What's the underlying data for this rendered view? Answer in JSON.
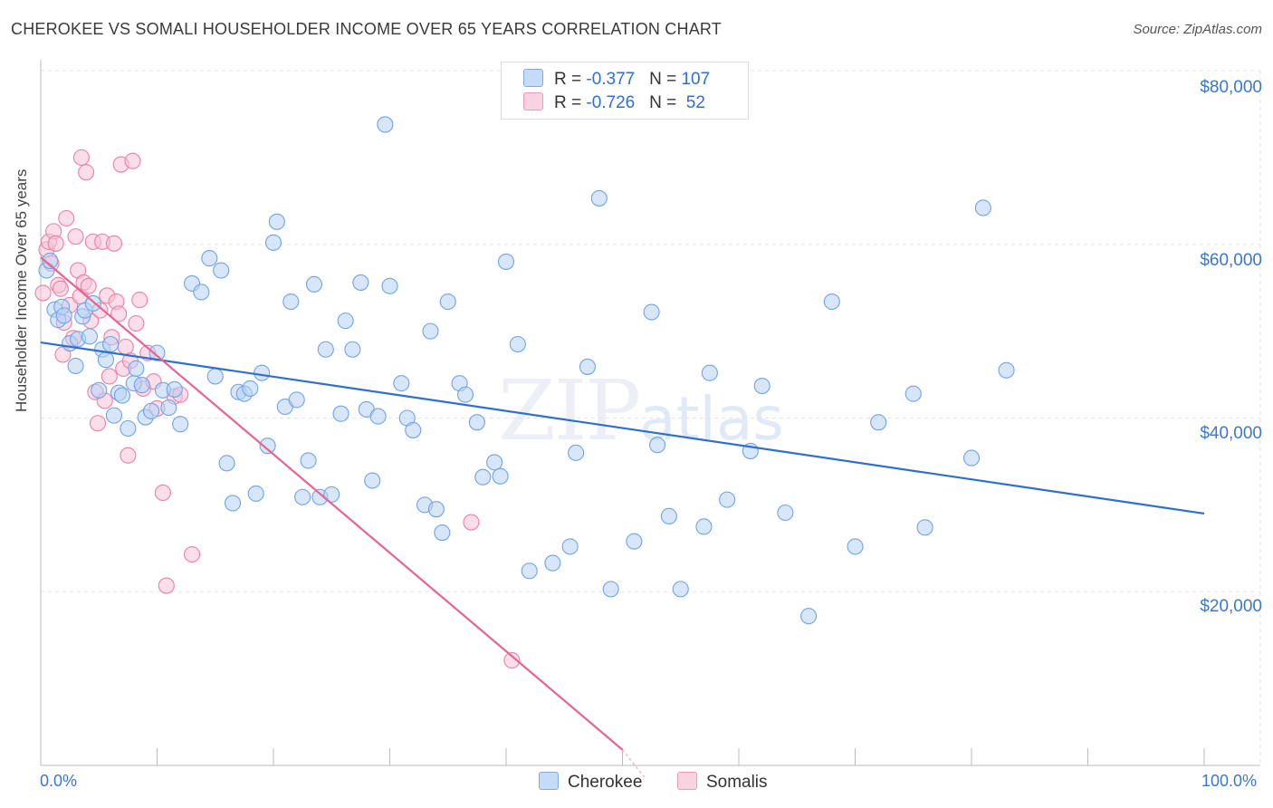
{
  "header": {
    "title": "CHEROKEE VS SOMALI HOUSEHOLDER INCOME OVER 65 YEARS CORRELATION CHART",
    "source": "Source: ZipAtlas.com"
  },
  "watermark": {
    "zip": "ZIP",
    "atlas": "atlas"
  },
  "legend_top": {
    "rows": [
      {
        "r_label": "R = ",
        "r_value": "-0.377",
        "n_label": "N = ",
        "n_value": "107",
        "color": "#9ec1f0"
      },
      {
        "r_label": "R = ",
        "r_value": "-0.726",
        "n_label": "N = ",
        "n_value": " 52",
        "color": "#f6b8cd"
      }
    ]
  },
  "legend_bottom": {
    "items": [
      {
        "label": "Cherokee",
        "color": "#9ec1f0"
      },
      {
        "label": "Somalis",
        "color": "#f6b8cd"
      }
    ]
  },
  "chart_data": {
    "type": "scatter",
    "title": "CHEROKEE VS SOMALI HOUSEHOLDER INCOME OVER 65 YEARS CORRELATION CHART",
    "xlabel": "",
    "ylabel": "Householder Income Over 65 years",
    "xlim": [
      0,
      100
    ],
    "ylim": [
      0,
      80000
    ],
    "x_tick_labels": [
      "0.0%",
      "100.0%"
    ],
    "y_ticks": [
      20000,
      40000,
      60000,
      80000
    ],
    "y_tick_labels": [
      "$20,000",
      "$40,000",
      "$60,000",
      "$80,000"
    ],
    "grid": true,
    "series": [
      {
        "name": "Cherokee",
        "color": "#6fa3e6",
        "fill": "#b8d2f5",
        "trend": {
          "x": [
            0,
            100
          ],
          "y": [
            48700,
            29000
          ]
        },
        "points": [
          [
            0.5,
            57000
          ],
          [
            0.8,
            58100
          ],
          [
            1.2,
            52500
          ],
          [
            1.5,
            51300
          ],
          [
            1.8,
            52800
          ],
          [
            2.0,
            51800
          ],
          [
            2.5,
            48600
          ],
          [
            3.0,
            46000
          ],
          [
            3.2,
            49100
          ],
          [
            3.6,
            51700
          ],
          [
            3.8,
            52400
          ],
          [
            4.2,
            49400
          ],
          [
            4.5,
            53200
          ],
          [
            5.0,
            43200
          ],
          [
            5.3,
            47900
          ],
          [
            5.6,
            46700
          ],
          [
            6.0,
            48500
          ],
          [
            6.3,
            40300
          ],
          [
            6.7,
            42900
          ],
          [
            7.0,
            42600
          ],
          [
            7.5,
            38800
          ],
          [
            8.0,
            44000
          ],
          [
            8.2,
            45700
          ],
          [
            8.7,
            43800
          ],
          [
            9.0,
            40100
          ],
          [
            9.5,
            40800
          ],
          [
            10.0,
            47500
          ],
          [
            10.5,
            43200
          ],
          [
            11.0,
            41200
          ],
          [
            11.5,
            43300
          ],
          [
            12.0,
            39300
          ],
          [
            13.0,
            55500
          ],
          [
            13.8,
            54500
          ],
          [
            14.5,
            58400
          ],
          [
            15.0,
            44800
          ],
          [
            15.5,
            57000
          ],
          [
            16.0,
            34800
          ],
          [
            16.5,
            30200
          ],
          [
            17.0,
            43000
          ],
          [
            17.5,
            42800
          ],
          [
            18.0,
            43400
          ],
          [
            18.5,
            31300
          ],
          [
            19.0,
            45200
          ],
          [
            19.5,
            36800
          ],
          [
            20.0,
            60200
          ],
          [
            20.3,
            62600
          ],
          [
            21.0,
            41300
          ],
          [
            21.5,
            53400
          ],
          [
            22.0,
            42100
          ],
          [
            22.5,
            30900
          ],
          [
            23.0,
            35100
          ],
          [
            23.5,
            55400
          ],
          [
            24.0,
            30900
          ],
          [
            24.5,
            47900
          ],
          [
            25.0,
            31200
          ],
          [
            25.8,
            40500
          ],
          [
            26.2,
            51200
          ],
          [
            26.8,
            47900
          ],
          [
            27.5,
            55600
          ],
          [
            28.0,
            41000
          ],
          [
            28.5,
            32800
          ],
          [
            29.0,
            40200
          ],
          [
            29.6,
            73800
          ],
          [
            30.0,
            55200
          ],
          [
            31.0,
            44000
          ],
          [
            31.5,
            40000
          ],
          [
            32.0,
            38600
          ],
          [
            33.0,
            30000
          ],
          [
            33.5,
            50000
          ],
          [
            34.0,
            29500
          ],
          [
            34.5,
            26800
          ],
          [
            35.0,
            53400
          ],
          [
            36.0,
            44000
          ],
          [
            36.5,
            42700
          ],
          [
            37.5,
            39500
          ],
          [
            38.0,
            33200
          ],
          [
            39.0,
            34900
          ],
          [
            39.5,
            33300
          ],
          [
            40.0,
            58000
          ],
          [
            41.0,
            48500
          ],
          [
            42.0,
            22400
          ],
          [
            44.0,
            23300
          ],
          [
            45.5,
            25200
          ],
          [
            47.0,
            45900
          ],
          [
            48.0,
            65300
          ],
          [
            49.0,
            20300
          ],
          [
            51.0,
            25800
          ],
          [
            52.5,
            52200
          ],
          [
            53.0,
            36900
          ],
          [
            54.0,
            28700
          ],
          [
            55.0,
            20300
          ],
          [
            57.0,
            27500
          ],
          [
            59.0,
            30600
          ],
          [
            61.0,
            36200
          ],
          [
            62.0,
            43700
          ],
          [
            64.0,
            29100
          ],
          [
            66.0,
            17200
          ],
          [
            68.0,
            53400
          ],
          [
            70.0,
            25200
          ],
          [
            72.0,
            39500
          ],
          [
            75.0,
            42800
          ],
          [
            76.0,
            27400
          ],
          [
            80.0,
            35400
          ],
          [
            81.0,
            64200
          ],
          [
            83.0,
            45500
          ],
          [
            57.5,
            45200
          ],
          [
            46.0,
            36000
          ]
        ]
      },
      {
        "name": "Somalis",
        "color": "#ec7fa5",
        "fill": "#f8c3d5",
        "trend": {
          "x": [
            0,
            50
          ],
          "y": [
            58500,
            1800
          ]
        },
        "points": [
          [
            0.2,
            54400
          ],
          [
            0.5,
            59400
          ],
          [
            0.7,
            60300
          ],
          [
            0.9,
            57800
          ],
          [
            1.1,
            61500
          ],
          [
            1.3,
            60100
          ],
          [
            1.5,
            55300
          ],
          [
            1.7,
            54900
          ],
          [
            1.9,
            47300
          ],
          [
            2.0,
            51000
          ],
          [
            2.2,
            63000
          ],
          [
            2.5,
            53000
          ],
          [
            2.8,
            49200
          ],
          [
            3.0,
            60900
          ],
          [
            3.2,
            57000
          ],
          [
            3.4,
            54000
          ],
          [
            3.5,
            70000
          ],
          [
            3.7,
            55600
          ],
          [
            3.9,
            68300
          ],
          [
            4.1,
            55200
          ],
          [
            4.3,
            51200
          ],
          [
            4.5,
            60300
          ],
          [
            4.7,
            43000
          ],
          [
            4.9,
            39400
          ],
          [
            5.1,
            52400
          ],
          [
            5.3,
            60300
          ],
          [
            5.5,
            42000
          ],
          [
            5.7,
            54100
          ],
          [
            5.9,
            44800
          ],
          [
            6.1,
            49300
          ],
          [
            6.3,
            60100
          ],
          [
            6.5,
            53400
          ],
          [
            6.7,
            52000
          ],
          [
            6.9,
            69200
          ],
          [
            7.1,
            45700
          ],
          [
            7.3,
            48200
          ],
          [
            7.5,
            35700
          ],
          [
            7.7,
            46600
          ],
          [
            7.9,
            69600
          ],
          [
            8.2,
            50900
          ],
          [
            8.5,
            53600
          ],
          [
            8.8,
            43400
          ],
          [
            9.2,
            47500
          ],
          [
            9.7,
            44200
          ],
          [
            10.0,
            41100
          ],
          [
            10.5,
            31400
          ],
          [
            10.8,
            20700
          ],
          [
            11.5,
            42500
          ],
          [
            12.0,
            42700
          ],
          [
            13.0,
            24300
          ],
          [
            37.0,
            28000
          ],
          [
            40.5,
            12100
          ]
        ]
      }
    ]
  }
}
